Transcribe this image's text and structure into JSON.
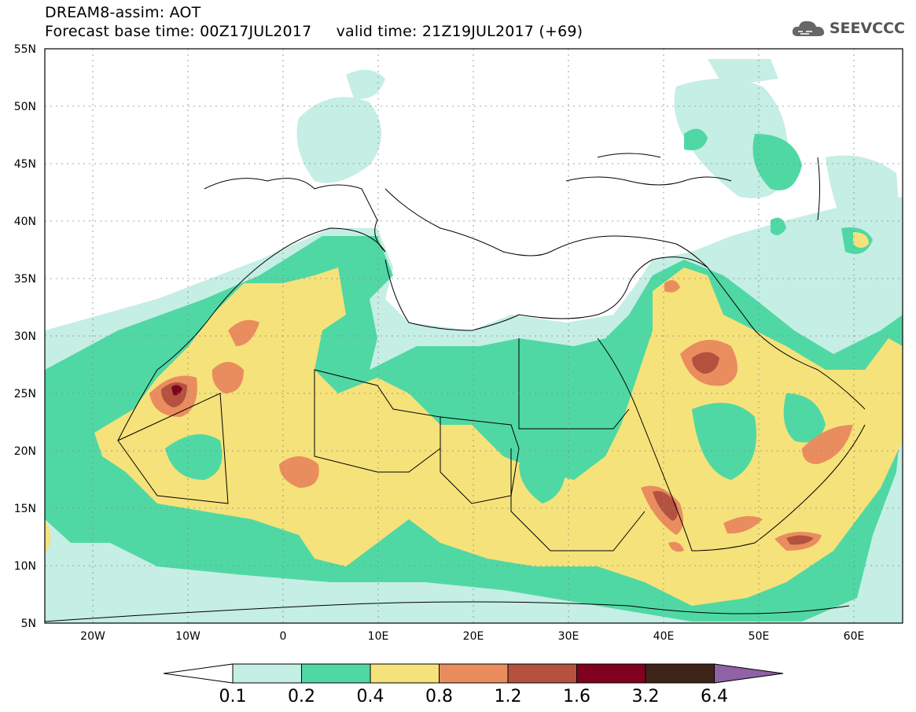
{
  "header": {
    "line1": "DREAM8-assim: AOT",
    "base_time": "Forecast base time: 00Z17JUL2017",
    "valid_time": "valid time: 21Z19JUL2017 (+69)"
  },
  "brand": {
    "name": "SEEVCCC",
    "icon": "cloud-icon"
  },
  "map": {
    "variable": "AOT",
    "lat_ticks": [
      "55N",
      "50N",
      "45N",
      "40N",
      "35N",
      "30N",
      "25N",
      "20N",
      "15N",
      "10N",
      "5N"
    ],
    "lon_ticks": [
      "20W",
      "10W",
      "0",
      "10E",
      "20E",
      "30E",
      "40E",
      "50E",
      "60E"
    ]
  },
  "colorbar": {
    "labels": [
      "0.1",
      "0.2",
      "0.4",
      "0.8",
      "1.2",
      "1.6",
      "3.2",
      "6.4"
    ],
    "colors": [
      "#ffffff",
      "#c5eee5",
      "#50d8a4",
      "#f6e27a",
      "#e98d5f",
      "#b4523f",
      "#800020",
      "#3e2418",
      "#8e62a4"
    ]
  },
  "colors": {
    "c1": "#c5eee5",
    "c2": "#50d8a4",
    "c3": "#f6e27a",
    "c4": "#e98d5f",
    "c5": "#b4523f",
    "c6": "#800020",
    "c7": "#3e2418",
    "c8": "#8e62a4"
  }
}
